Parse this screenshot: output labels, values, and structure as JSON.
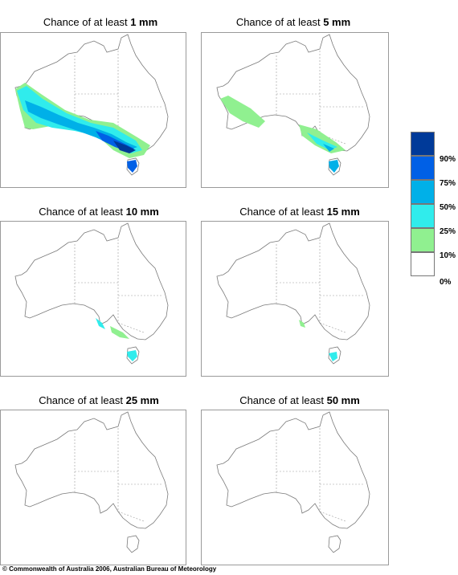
{
  "panels": [
    {
      "prefix": "Chance of at least ",
      "amount": "1 mm",
      "level": 1
    },
    {
      "prefix": "Chance of at least ",
      "amount": "5 mm",
      "level": 2
    },
    {
      "prefix": "Chance of at least ",
      "amount": "10 mm",
      "level": 3
    },
    {
      "prefix": "Chance of at least ",
      "amount": "15 mm",
      "level": 4
    },
    {
      "prefix": "Chance of at least ",
      "amount": "25 mm",
      "level": 5
    },
    {
      "prefix": "Chance of at least ",
      "amount": "50 mm",
      "level": 6
    }
  ],
  "legend": {
    "colors": [
      "#003a99",
      "#0060e6",
      "#00b0e8",
      "#30ecec",
      "#90f090",
      "#ffffff"
    ],
    "labels": [
      "90%",
      "75%",
      "50%",
      "25%",
      "10%",
      "0%"
    ]
  },
  "footer": "© Commonwealth of Australia 2006, Australian Bureau of Meteorology"
}
